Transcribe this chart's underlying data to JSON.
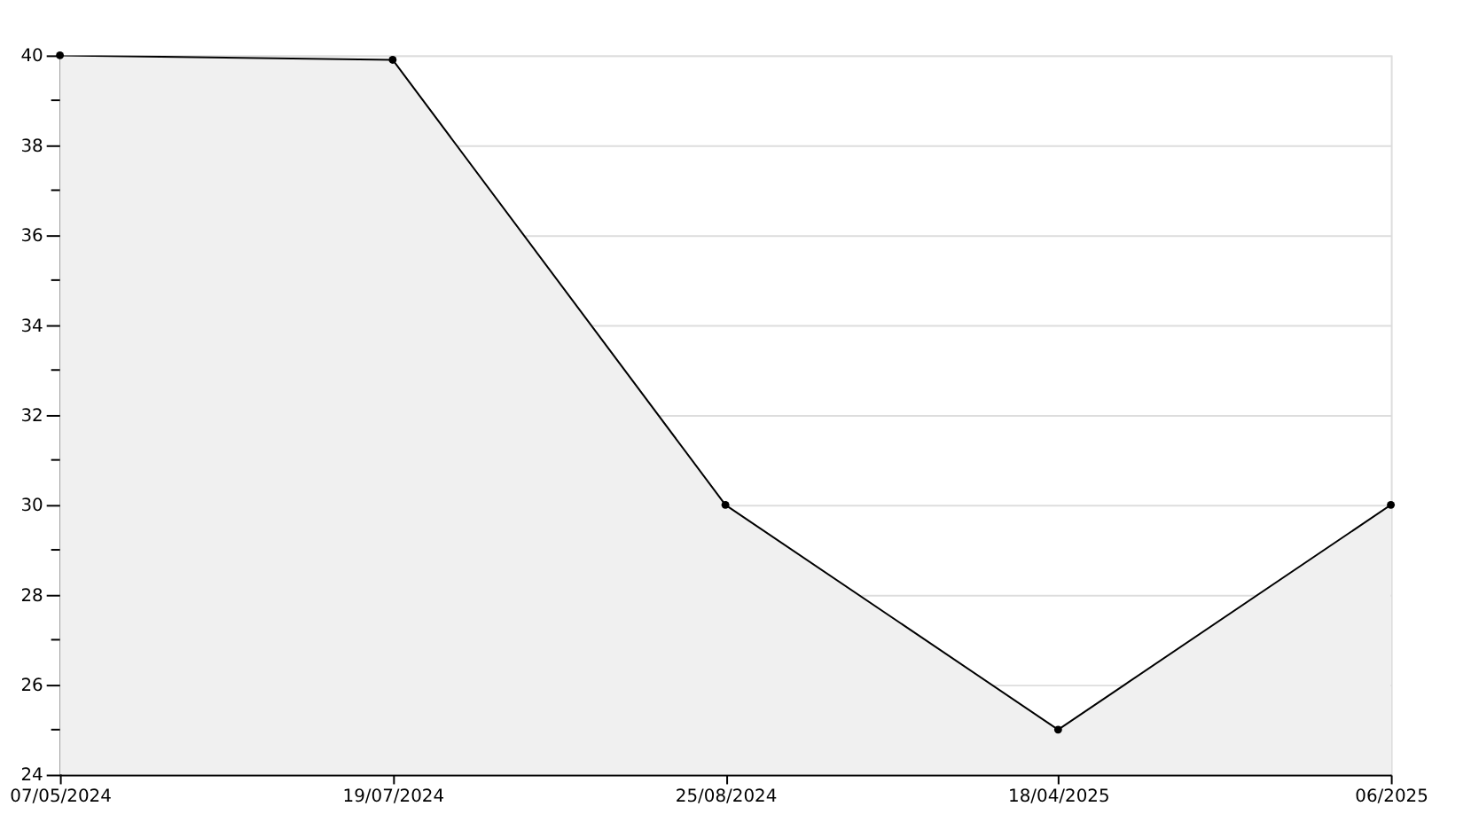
{
  "chart_data": {
    "type": "area",
    "categories": [
      "07/05/2024",
      "19/07/2024",
      "25/08/2024",
      "18/04/2025",
      "06/2025"
    ],
    "series": [
      {
        "color": "#f0f0f0",
        "values": [
          40,
          39.9,
          30,
          25,
          30
        ]
      }
    ],
    "ylim": [
      24,
      40
    ],
    "yticks": [
      24,
      {
        "value": 25,
        "label": null
      },
      26,
      {
        "value": 27,
        "label": null
      },
      28,
      {
        "value": 29,
        "label": null
      },
      30,
      {
        "value": 31,
        "label": null
      },
      32,
      {
        "value": 33,
        "label": null
      },
      34,
      {
        "value": 35,
        "label": null
      },
      36,
      {
        "value": 37,
        "label": null
      },
      38,
      {
        "value": 39,
        "label": null
      },
      40
    ],
    "grid": "y",
    "marker": "circle",
    "legend": false
  }
}
